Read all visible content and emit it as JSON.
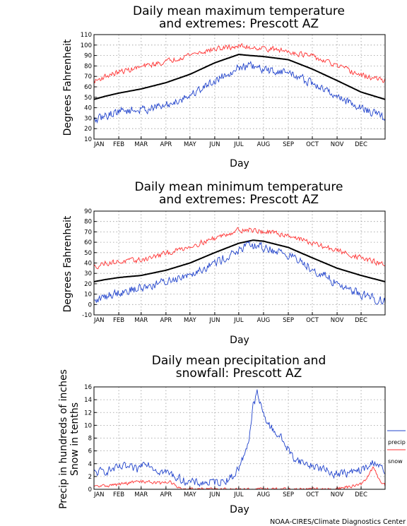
{
  "credit": "NOAA-CIRES/Climate Diagnostics Center",
  "colors": {
    "mean": "#000000",
    "high": "#ff3333",
    "low": "#2244cc",
    "precip": "#2244cc",
    "snow": "#ff3333",
    "grid": "#999999"
  },
  "chart_data": [
    {
      "type": "line",
      "title": [
        "Daily mean maximum temperature",
        "and extremes: Prescott AZ"
      ],
      "xlabel": "Day",
      "ylabel": "Degrees Fahrenheit",
      "xlim": [
        1,
        365
      ],
      "ylim": [
        10,
        110
      ],
      "yticks": [
        10,
        20,
        30,
        40,
        50,
        60,
        70,
        80,
        90,
        100,
        110
      ],
      "month_ticks": [
        "JAN",
        "FEB",
        "MAR",
        "APR",
        "MAY",
        "JUN",
        "JUL",
        "AUG",
        "SEP",
        "OCT",
        "NOV",
        "DEC"
      ],
      "month_start_day": [
        1,
        32,
        60,
        91,
        121,
        152,
        182,
        213,
        244,
        274,
        305,
        335
      ],
      "grid": true,
      "series": [
        {
          "key": "mean",
          "anchors_day": [
            1,
            15,
            32,
            60,
            91,
            121,
            152,
            182,
            196,
            213,
            244,
            274,
            305,
            335,
            365
          ],
          "anchors_value": [
            48,
            51,
            54,
            58,
            64,
            72,
            83,
            91,
            90,
            89,
            86,
            77,
            66,
            55,
            48
          ]
        },
        {
          "key": "high",
          "anchors_day": [
            1,
            15,
            32,
            60,
            91,
            121,
            152,
            182,
            196,
            213,
            244,
            274,
            305,
            335,
            365
          ],
          "anchors_value": [
            65,
            70,
            74,
            79,
            84,
            91,
            96,
            99,
            98,
            97,
            94,
            89,
            80,
            71,
            66
          ],
          "noise": 3.5
        },
        {
          "key": "low",
          "anchors_day": [
            1,
            15,
            32,
            60,
            91,
            121,
            152,
            182,
            196,
            213,
            244,
            274,
            305,
            335,
            365
          ],
          "anchors_value": [
            27,
            32,
            37,
            38,
            42,
            52,
            66,
            79,
            80,
            76,
            74,
            63,
            51,
            40,
            30
          ],
          "noise": 5.5
        }
      ]
    },
    {
      "type": "line",
      "title": [
        "Daily mean minimum temperature",
        "and extremes: Prescott AZ"
      ],
      "xlabel": "Day",
      "ylabel": "Degrees Fahrenheit",
      "xlim": [
        1,
        365
      ],
      "ylim": [
        -10,
        90
      ],
      "yticks": [
        -10,
        0,
        10,
        20,
        30,
        40,
        50,
        60,
        70,
        80,
        90
      ],
      "month_ticks": [
        "JAN",
        "FEB",
        "MAR",
        "APR",
        "MAY",
        "JUN",
        "JUL",
        "AUG",
        "SEP",
        "OCT",
        "NOV",
        "DEC"
      ],
      "month_start_day": [
        1,
        32,
        60,
        91,
        121,
        152,
        182,
        213,
        244,
        274,
        305,
        335
      ],
      "grid": true,
      "series": [
        {
          "key": "mean",
          "anchors_day": [
            1,
            15,
            32,
            60,
            91,
            121,
            152,
            182,
            200,
            213,
            244,
            274,
            305,
            335,
            365
          ],
          "anchors_value": [
            22,
            24,
            26,
            28,
            33,
            40,
            50,
            59,
            62,
            61,
            55,
            45,
            35,
            28,
            22
          ]
        },
        {
          "key": "high",
          "anchors_day": [
            1,
            15,
            32,
            60,
            91,
            121,
            152,
            182,
            196,
            213,
            244,
            274,
            305,
            335,
            365
          ],
          "anchors_value": [
            36,
            40,
            41,
            43,
            49,
            56,
            64,
            72,
            72,
            70,
            67,
            59,
            52,
            45,
            38
          ],
          "noise": 3.5
        },
        {
          "key": "low",
          "anchors_day": [
            1,
            15,
            32,
            60,
            91,
            121,
            152,
            182,
            196,
            213,
            244,
            274,
            305,
            335,
            365
          ],
          "anchors_value": [
            2,
            8,
            12,
            16,
            22,
            30,
            40,
            52,
            57,
            55,
            48,
            35,
            20,
            10,
            3
          ],
          "noise": 6
        }
      ]
    },
    {
      "type": "line",
      "title": [
        "Daily mean precipitation and",
        "snowfall: Prescott AZ"
      ],
      "xlabel": "Day",
      "ylabel": [
        "Precip in hundreds of inches",
        "Snow in tenths"
      ],
      "xlim": [
        1,
        365
      ],
      "ylim": [
        0,
        16
      ],
      "yticks": [
        0,
        2,
        4,
        6,
        8,
        10,
        12,
        14,
        16
      ],
      "month_ticks": [
        "JAN",
        "FEB",
        "MAR",
        "APR",
        "MAY",
        "JUN",
        "JUL",
        "AUG",
        "SEP",
        "OCT",
        "NOV",
        "DEC"
      ],
      "month_start_day": [
        1,
        32,
        60,
        91,
        121,
        152,
        182,
        213,
        244,
        274,
        305,
        335
      ],
      "grid": true,
      "legend": {
        "placement": "right",
        "entries": [
          {
            "key": "precip",
            "label": "precip"
          },
          {
            "key": "snow",
            "label": "snow"
          }
        ]
      },
      "series": [
        {
          "key": "precip",
          "name": "precip",
          "anchors_day": [
            1,
            20,
            40,
            55,
            65,
            80,
            95,
            110,
            125,
            140,
            160,
            175,
            185,
            195,
            200,
            205,
            212,
            220,
            235,
            250,
            265,
            280,
            300,
            320,
            335,
            345,
            352,
            365
          ],
          "anchors_value": [
            2.5,
            3,
            3.5,
            3,
            4.5,
            3,
            2.5,
            1.5,
            1,
            1,
            1.2,
            2,
            4,
            8,
            13,
            15,
            12,
            10,
            8,
            5,
            4,
            3.5,
            2.5,
            2.5,
            3,
            3.5,
            4.5,
            2.5
          ],
          "noise": 0.9
        },
        {
          "key": "snow",
          "name": "snow",
          "anchors_day": [
            1,
            20,
            40,
            55,
            70,
            85,
            95,
            105,
            110,
            300,
            315,
            330,
            340,
            350,
            358,
            365
          ],
          "anchors_value": [
            0.4,
            0.6,
            0.9,
            1.2,
            1.2,
            0.9,
            1.3,
            0.3,
            0,
            0,
            0.3,
            0.6,
            1.2,
            3.5,
            1.5,
            0.6
          ],
          "noise": 0.35
        }
      ]
    }
  ]
}
